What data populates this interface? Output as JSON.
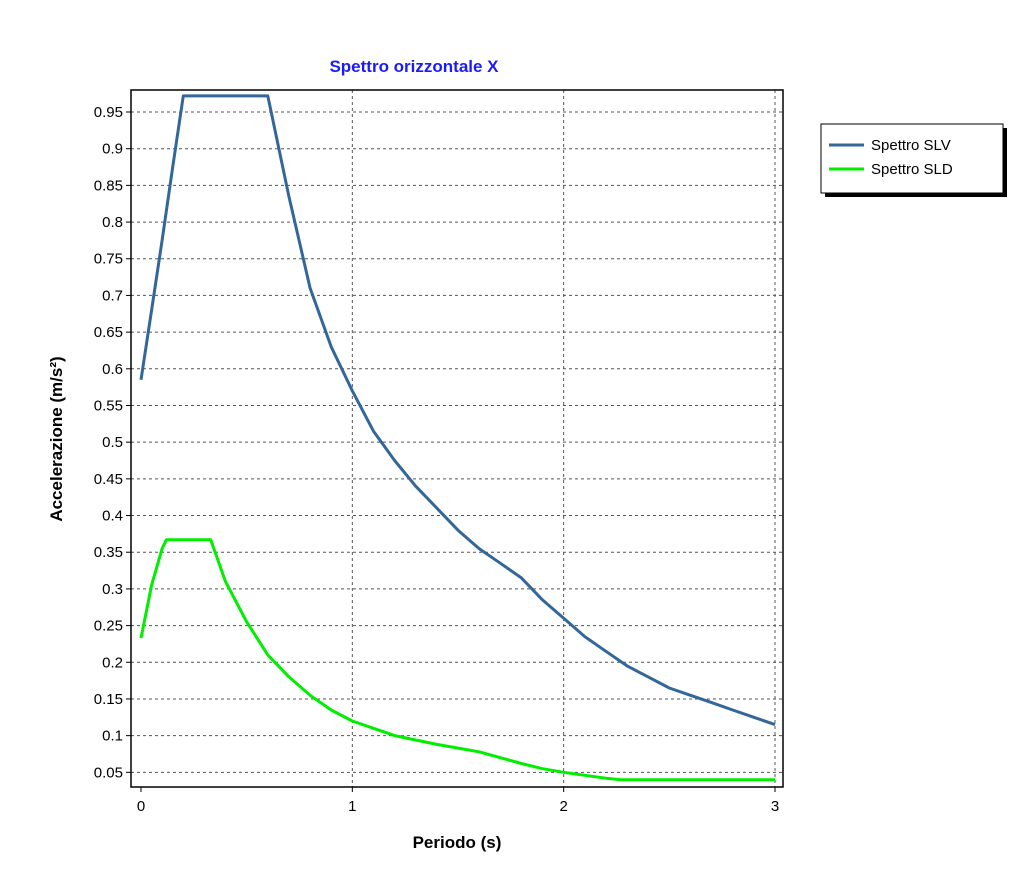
{
  "chart_data": {
    "type": "line",
    "title": "Spettro orizzontale X",
    "xlabel": "Periodo (s)",
    "ylabel": "Accelerazione (m/s²)",
    "xlim": [
      0,
      3
    ],
    "ylim": [
      0.03,
      0.98
    ],
    "xticks": [
      0,
      1,
      2,
      3
    ],
    "xtick_labels": [
      "0",
      "1",
      "2",
      "3"
    ],
    "yticks": [
      0.05,
      0.1,
      0.15,
      0.2,
      0.25,
      0.3,
      0.35,
      0.4,
      0.45,
      0.5,
      0.55,
      0.6,
      0.65,
      0.7,
      0.75,
      0.8,
      0.85,
      0.9,
      0.95
    ],
    "ytick_labels": [
      "0.05",
      "0.1",
      "0.15",
      "0.2",
      "0.25",
      "0.3",
      "0.35",
      "0.4",
      "0.45",
      "0.5",
      "0.55",
      "0.6",
      "0.65",
      "0.7",
      "0.75",
      "0.8",
      "0.85",
      "0.9",
      "0.95"
    ],
    "grid": true,
    "legend_position": "top-right-outside",
    "title_color": "#1a1aff",
    "series": [
      {
        "name": "Spettro SLV",
        "color": "#336699",
        "x": [
          0,
          0.05,
          0.1,
          0.15,
          0.2,
          0.3,
          0.4,
          0.5,
          0.6,
          0.7,
          0.8,
          0.9,
          1.0,
          1.1,
          1.2,
          1.3,
          1.4,
          1.5,
          1.6,
          1.7,
          1.8,
          1.9,
          2.0,
          2.1,
          2.2,
          2.3,
          2.4,
          2.5,
          2.6,
          2.7,
          2.8,
          2.9,
          3.0
        ],
        "y": [
          0.585,
          0.68,
          0.775,
          0.875,
          0.972,
          0.972,
          0.972,
          0.972,
          0.972,
          0.835,
          0.71,
          0.63,
          0.57,
          0.515,
          0.475,
          0.44,
          0.41,
          0.38,
          0.355,
          0.335,
          0.315,
          0.285,
          0.26,
          0.235,
          0.215,
          0.195,
          0.18,
          0.165,
          0.155,
          0.145,
          0.135,
          0.125,
          0.115
        ]
      },
      {
        "name": "Spettro SLD",
        "color": "#00ee00",
        "x": [
          0,
          0.05,
          0.1,
          0.12,
          0.2,
          0.25,
          0.33,
          0.4,
          0.5,
          0.6,
          0.7,
          0.8,
          0.9,
          1.0,
          1.1,
          1.2,
          1.3,
          1.4,
          1.5,
          1.6,
          1.7,
          1.8,
          1.9,
          2.0,
          2.1,
          2.2,
          2.27,
          2.5,
          3.0
        ],
        "y": [
          0.233,
          0.305,
          0.355,
          0.367,
          0.367,
          0.367,
          0.367,
          0.31,
          0.255,
          0.21,
          0.18,
          0.155,
          0.135,
          0.12,
          0.11,
          0.1,
          0.094,
          0.088,
          0.083,
          0.078,
          0.07,
          0.062,
          0.055,
          0.05,
          0.046,
          0.042,
          0.04,
          0.04,
          0.04
        ]
      }
    ]
  }
}
